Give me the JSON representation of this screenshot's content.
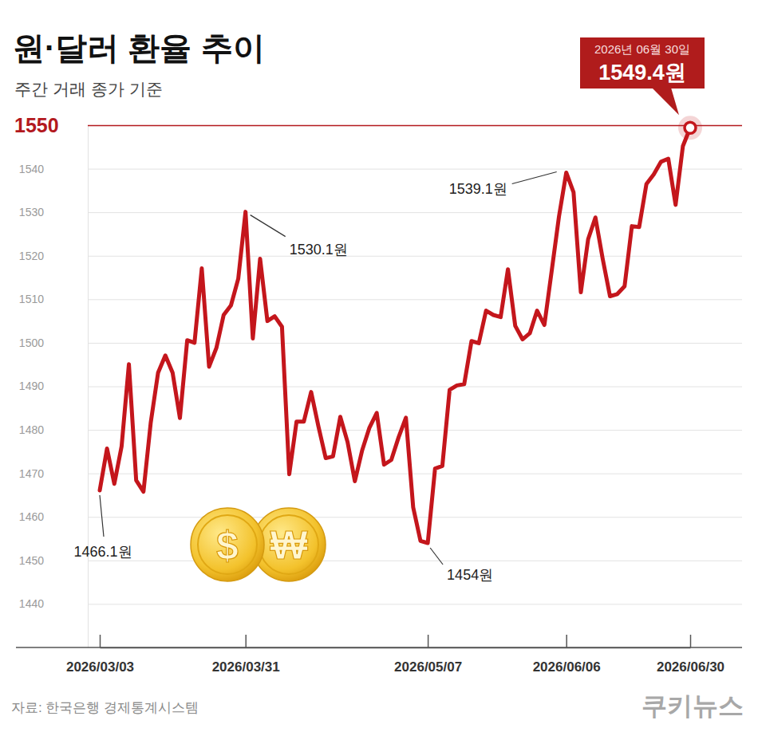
{
  "chart_data": {
    "type": "line",
    "title": "원·달러 환율 추이",
    "subtitle": "주간 거래 종가 기준",
    "source": "자료: 한국은행 경제통계시스템",
    "brand": "쿠키뉴스",
    "coin_symbols": [
      "$",
      "₩"
    ],
    "color": "#c4161c",
    "grid": true,
    "categories": [
      "2026/03/03",
      null,
      null,
      null,
      null,
      null,
      null,
      null,
      null,
      null,
      null,
      null,
      null,
      null,
      null,
      null,
      null,
      null,
      null,
      null,
      "2026/03/31",
      null,
      null,
      null,
      null,
      null,
      null,
      null,
      null,
      null,
      null,
      null,
      null,
      null,
      null,
      null,
      null,
      null,
      null,
      null,
      null,
      null,
      null,
      null,
      null,
      "2026/05/07",
      null,
      null,
      null,
      null,
      null,
      null,
      null,
      null,
      null,
      null,
      null,
      null,
      null,
      null,
      null,
      null,
      null,
      null,
      "2026/06/06",
      null,
      null,
      null,
      null,
      null,
      null,
      null,
      null,
      null,
      null,
      null,
      null,
      null,
      null,
      null,
      null,
      "2026/06/30"
    ],
    "values": [
      1466.1,
      1475.7,
      1467.6,
      1476.2,
      1495.1,
      1468.4,
      1465.8,
      1481.7,
      1493.1,
      1497.1,
      1493.1,
      1482.7,
      1500.6,
      1500.0,
      1517.1,
      1494.5,
      1498.8,
      1506.4,
      1508.6,
      1514.7,
      1530.1,
      1501.0,
      1519.3,
      1505.0,
      1506.1,
      1503.7,
      1469.8,
      1481.9,
      1481.9,
      1488.7,
      1480.8,
      1473.5,
      1473.9,
      1483.0,
      1477.2,
      1468.2,
      1475.3,
      1480.5,
      1483.9,
      1472.0,
      1473.1,
      1478.3,
      1482.8,
      1462.2,
      1454.5,
      1454,
      1471.1,
      1471.7,
      1489.2,
      1490.2,
      1490.5,
      1500.4,
      1499.9,
      1507.4,
      1506.4,
      1505.9,
      1516.9,
      1503.9,
      1500.8,
      1502.2,
      1507.4,
      1504.1,
      1516.5,
      1529.0,
      1539.1,
      1534.6,
      1511.6,
      1523.8,
      1528.8,
      1519.3,
      1510.7,
      1511.2,
      1513.0,
      1526.8,
      1526.6,
      1536.5,
      1538.7,
      1541.6,
      1542.3,
      1531.7,
      1545.2,
      1549.4
    ],
    "ylim": [
      1430,
      1550
    ],
    "yticks": [
      1440,
      1450,
      1460,
      1470,
      1480,
      1490,
      1500,
      1510,
      1520,
      1530,
      1540,
      1550
    ],
    "annotations": [
      {
        "x": "2026/03/03",
        "text": "1466.1원"
      },
      {
        "x": "2026/03/31",
        "text": "1530.1원"
      },
      {
        "x": "2026/05/07",
        "text": "1454원"
      },
      {
        "x": "2026/06/06",
        "text": "1539.1원"
      }
    ],
    "callout": {
      "x": "2026/06/30",
      "date_text": "2026년 06월 30일",
      "text": "1549.4원"
    }
  }
}
